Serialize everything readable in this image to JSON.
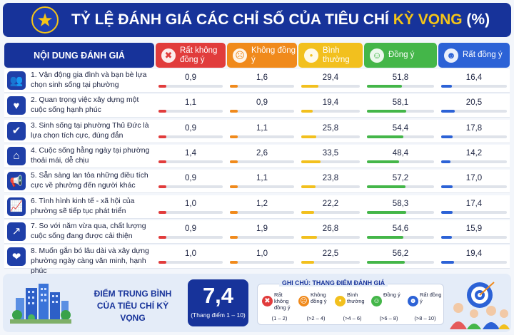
{
  "title": {
    "main": "TỶ LỆ ĐÁNH GIÁ CÁC CHỈ SỐ CỦA TIÊU CHÍ ",
    "highlight": "KỲ VỌNG",
    "suffix": " (%)",
    "icon": "star-icon"
  },
  "colors": {
    "banner": "#17339a",
    "rat_khong_dong_y": "#e13c3c",
    "khong_dong_y": "#f08a1c",
    "binh_thuong": "#f2c01e",
    "dong_y": "#44b649",
    "rat_dong_y": "#2c62d6"
  },
  "header": {
    "content_label": "NỘI DUNG ĐÁNH GIÁ",
    "columns": [
      {
        "label": "Rất không đồng ý",
        "icon": "very-sad-face-icon",
        "color": "#e13c3c"
      },
      {
        "label": "Không đồng ý",
        "icon": "sad-face-icon",
        "color": "#f08a1c"
      },
      {
        "label": "Bình thường",
        "icon": "neutral-face-icon",
        "color": "#f2c01e"
      },
      {
        "label": "Đồng ý",
        "icon": "happy-face-icon",
        "color": "#44b649"
      },
      {
        "label": "Rất đồng ý",
        "icon": "very-happy-face-icon",
        "color": "#2c62d6"
      }
    ]
  },
  "chart_data": {
    "type": "table",
    "title": "TỶ LỆ ĐÁNH GIÁ CÁC CHỈ SỐ CỦA TIÊU CHÍ KỲ VỌNG (%)",
    "categories": [
      "Rất không đồng ý",
      "Không đồng ý",
      "Bình thường",
      "Đồng ý",
      "Rất đồng ý"
    ],
    "rows": [
      {
        "label": "1. Vận động gia đình và bạn bè lựa chọn sinh sống tại phường",
        "icon": "people-icon",
        "values": [
          "0,9",
          "1,6",
          "29,4",
          "51,8",
          "16,4"
        ],
        "numeric": [
          0.9,
          1.6,
          29.4,
          51.8,
          16.4
        ]
      },
      {
        "label": "2. Quan trọng việc xây dựng một cuộc sống hạnh phúc",
        "icon": "heart-icon",
        "values": [
          "1,1",
          "0,9",
          "19,4",
          "58,1",
          "20,5"
        ],
        "numeric": [
          1.1,
          0.9,
          19.4,
          58.1,
          20.5
        ]
      },
      {
        "label": "3. Sinh sống tại phường Thủ Đức là lựa chọn tích cực, đúng đắn",
        "icon": "check-icon",
        "values": [
          "0,9",
          "1,1",
          "25,8",
          "54,4",
          "17,8"
        ],
        "numeric": [
          0.9,
          1.1,
          25.8,
          54.4,
          17.8
        ]
      },
      {
        "label": "4. Cuộc sống hằng ngày tại phường thoải mái, dễ chịu",
        "icon": "home-icon",
        "values": [
          "1,4",
          "2,6",
          "33,5",
          "48,4",
          "14,2"
        ],
        "numeric": [
          1.4,
          2.6,
          33.5,
          48.4,
          14.2
        ]
      },
      {
        "label": "5. Sẵn sàng lan tỏa những điều tích cực về phường đến người khác",
        "icon": "megaphone-icon",
        "values": [
          "0,9",
          "1,1",
          "23,8",
          "57,2",
          "17,0"
        ],
        "numeric": [
          0.9,
          1.1,
          23.8,
          57.2,
          17.0
        ]
      },
      {
        "label": "6. Tình hình kinh tế - xã hội của phường sẽ tiếp tục phát triển",
        "icon": "growth-chart-icon",
        "values": [
          "1,0",
          "1,2",
          "22,2",
          "58,3",
          "17,4"
        ],
        "numeric": [
          1.0,
          1.2,
          22.2,
          58.3,
          17.4
        ]
      },
      {
        "label": "7. So với năm vừa qua, chất lượng cuộc sống đang được cải thiện",
        "icon": "trend-up-icon",
        "values": [
          "0,9",
          "1,9",
          "26,8",
          "54,6",
          "15,9"
        ],
        "numeric": [
          0.9,
          1.9,
          26.8,
          54.6,
          15.9
        ]
      },
      {
        "label": "8. Muốn gắn bó lâu dài và xây dựng phường ngày càng văn minh, hạnh phúc",
        "icon": "family-heart-icon",
        "values": [
          "1,0",
          "1,0",
          "22,5",
          "56,2",
          "19,4"
        ],
        "numeric": [
          1.0,
          1.0,
          22.5,
          56.2,
          19.4
        ]
      }
    ]
  },
  "footer": {
    "avg_label_line1": "ĐIỂM TRUNG BÌNH",
    "avg_label_line2": "CỦA TIÊU CHÍ KỲ VỌNG",
    "avg_value": "7,4",
    "avg_scale": "(Thang điểm 1 – 10)",
    "legend_title": "GHI CHÚ: THANG ĐIỂM ĐÁNH GIÁ",
    "legend": [
      {
        "name": "Rất không đồng ý",
        "range": "(1 – 2)",
        "icon": "very-sad-face-icon",
        "color": "#e13c3c"
      },
      {
        "name": "Không đồng ý",
        "range": "(>2 – 4)",
        "icon": "sad-face-icon",
        "color": "#f08a1c"
      },
      {
        "name": "Bình thường",
        "range": "(>4 – 6)",
        "icon": "neutral-face-icon",
        "color": "#f2c01e"
      },
      {
        "name": "Đồng ý",
        "range": "(>6 – 8)",
        "icon": "happy-face-icon",
        "color": "#44b649"
      },
      {
        "name": "Rất đồng ý",
        "range": "(>8 – 10)",
        "icon": "very-happy-face-icon",
        "color": "#2c62d6"
      }
    ]
  }
}
